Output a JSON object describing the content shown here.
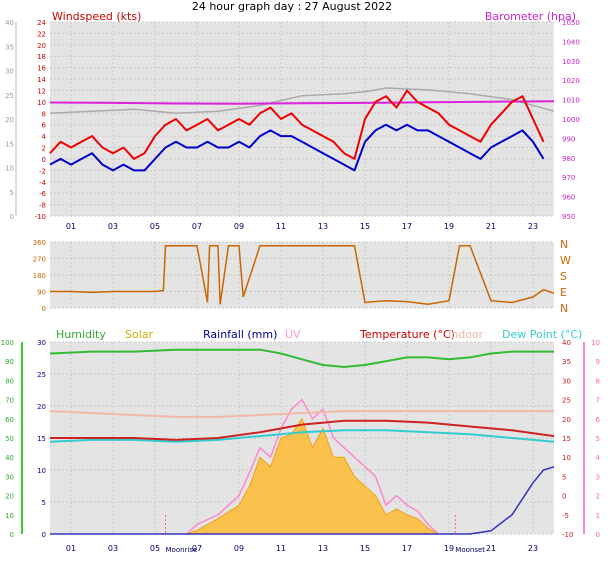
{
  "colors": {
    "panel_bg": "#e4e4e4",
    "grid": "#c8c8c8",
    "windspeed": "#ee0000",
    "wind_avg": "#0000cc",
    "barometer": "#dd22dd",
    "baro_alt": "#aaaaaa",
    "direction": "#cc6600",
    "humidity": "#33bb33",
    "solar": "#ffbb33",
    "rainfall": "#3333bb",
    "uv": "#ff88cc",
    "temperature": "#cc2222",
    "indoor": "#f0b8a8",
    "dewpoint": "#33cccc"
  },
  "chart_data": [
    {
      "type": "line",
      "title": "24 hour graph day : 27 August 2022",
      "x_tick_labels": [
        "01",
        "03",
        "05",
        "07",
        "09",
        "11",
        "13",
        "15",
        "17",
        "19",
        "21",
        "23"
      ],
      "left_axis": {
        "label": "Windspeed (kts)",
        "range": [
          -10,
          24
        ],
        "ticks": [
          "24",
          "22",
          "20",
          "18",
          "16",
          "14",
          "12",
          "10",
          "8",
          "6",
          "4",
          "2",
          "0",
          "-2",
          "-4",
          "-6",
          "-8",
          "-10"
        ]
      },
      "outer_axis": {
        "range": [
          0,
          40
        ],
        "ticks": [
          "40",
          "35",
          "30",
          "25",
          "20",
          "15",
          "10",
          "5",
          "0"
        ]
      },
      "right_axis": {
        "label": "Barometer (hpa)",
        "range": [
          950,
          1050
        ],
        "ticks": [
          "1050",
          "1040",
          "1030",
          "1020",
          "1010",
          "1000",
          "990",
          "980",
          "970",
          "960",
          "950"
        ]
      },
      "series": [
        {
          "name": "Windspeed (kts)",
          "x": [
            0,
            0.5,
            1,
            1.5,
            2,
            2.5,
            3,
            3.5,
            4,
            4.5,
            5,
            5.5,
            6,
            6.5,
            7,
            7.5,
            8,
            8.5,
            9,
            9.5,
            10,
            10.5,
            11,
            11.5,
            12,
            12.5,
            13,
            13.5,
            14,
            14.5,
            15,
            15.5,
            16,
            16.5,
            17,
            17.5,
            18,
            18.5,
            19,
            19.5,
            20,
            20.5,
            21,
            21.5,
            22,
            22.5,
            23,
            23.5
          ],
          "y": [
            1,
            3,
            2,
            3,
            4,
            2,
            1,
            2,
            0,
            1,
            4,
            6,
            7,
            5,
            6,
            7,
            5,
            6,
            7,
            6,
            8,
            9,
            7,
            8,
            6,
            5,
            4,
            3,
            1,
            0,
            7,
            10,
            11,
            9,
            12,
            10,
            9,
            8,
            6,
            5,
            4,
            3,
            6,
            8,
            10,
            11,
            7,
            3
          ]
        },
        {
          "name": "Wind average",
          "x": [
            0,
            0.5,
            1,
            1.5,
            2,
            2.5,
            3,
            3.5,
            4,
            4.5,
            5,
            5.5,
            6,
            6.5,
            7,
            7.5,
            8,
            8.5,
            9,
            9.5,
            10,
            10.5,
            11,
            11.5,
            12,
            12.5,
            13,
            13.5,
            14,
            14.5,
            15,
            15.5,
            16,
            16.5,
            17,
            17.5,
            18,
            18.5,
            19,
            19.5,
            20,
            20.5,
            21,
            21.5,
            22,
            22.5,
            23,
            23.5
          ],
          "y": [
            -1,
            0,
            -1,
            0,
            1,
            -1,
            -2,
            -1,
            -2,
            -2,
            0,
            2,
            3,
            2,
            2,
            3,
            2,
            2,
            3,
            2,
            4,
            5,
            4,
            4,
            3,
            2,
            1,
            0,
            -1,
            -2,
            3,
            5,
            6,
            5,
            6,
            5,
            5,
            4,
            3,
            2,
            1,
            0,
            2,
            3,
            4,
            5,
            3,
            0
          ]
        },
        {
          "name": "Barometer (hpa)",
          "x": [
            0,
            3,
            6,
            9,
            12,
            15,
            18,
            21,
            24
          ],
          "y": [
            1008.5,
            1008.3,
            1008.0,
            1007.9,
            1008.1,
            1008.3,
            1008.6,
            1008.9,
            1009.2
          ]
        },
        {
          "name": "Barometer alt",
          "x": [
            0,
            2,
            4,
            6,
            8,
            10,
            12,
            14,
            15,
            16,
            18,
            20,
            22,
            24
          ],
          "y": [
            1003,
            1004,
            1005,
            1003,
            1004,
            1007,
            1012,
            1013,
            1014,
            1016,
            1015,
            1013,
            1010,
            1004
          ]
        }
      ]
    },
    {
      "type": "line",
      "right_labels": [
        "N",
        "W",
        "S",
        "E",
        "N"
      ],
      "left_axis": {
        "range": [
          0,
          360
        ],
        "ticks": [
          "360",
          "270",
          "180",
          "90",
          "0"
        ]
      },
      "series": [
        {
          "name": "Wind direction",
          "x": [
            0,
            1,
            2,
            3,
            4,
            4.5,
            5,
            5.4,
            5.5,
            7,
            7.5,
            7.6,
            8,
            8.1,
            8.5,
            9,
            9.2,
            10,
            10.5,
            11,
            12,
            12.2,
            13,
            13.5,
            14,
            14.5,
            15,
            16,
            17,
            18,
            19,
            19.5,
            20,
            21,
            22,
            23,
            23.5,
            24
          ],
          "y": [
            90,
            90,
            85,
            90,
            90,
            90,
            90,
            95,
            340,
            340,
            30,
            340,
            340,
            20,
            340,
            340,
            60,
            340,
            340,
            340,
            340,
            340,
            340,
            340,
            340,
            340,
            30,
            40,
            35,
            20,
            40,
            340,
            340,
            40,
            30,
            60,
            100,
            80
          ]
        }
      ]
    },
    {
      "type": "line",
      "x_tick_labels": [
        "01",
        "03",
        "05",
        "07",
        "09",
        "11",
        "13",
        "15",
        "17",
        "19",
        "21",
        "23"
      ],
      "legend": [
        "Humidity",
        "Solar",
        "Rainfall (mm)",
        "UV",
        "Temperature (°C)",
        "Indoor",
        "Dew Point (°C)"
      ],
      "annotations": [
        "Moonrise",
        "Moonset"
      ],
      "humidity_axis": {
        "range": [
          0,
          100
        ],
        "ticks": [
          "100",
          "90",
          "80",
          "70",
          "60",
          "50",
          "40",
          "30",
          "20",
          "10",
          "0"
        ]
      },
      "rain_axis": {
        "range": [
          0,
          30
        ],
        "ticks": [
          "30",
          "25",
          "20",
          "15",
          "10",
          "5",
          "0"
        ]
      },
      "temp_axis": {
        "range": [
          -10,
          40
        ],
        "ticks": [
          "40",
          "35",
          "30",
          "25",
          "20",
          "15",
          "10",
          "5",
          "0",
          "-5",
          "-10"
        ]
      },
      "uv_axis": {
        "range": [
          0,
          10
        ],
        "ticks": [
          "10",
          "9",
          "8",
          "7",
          "6",
          "5",
          "4",
          "3",
          "2",
          "1",
          "0"
        ]
      },
      "series": [
        {
          "name": "Humidity",
          "x": [
            0,
            2,
            4,
            6,
            8,
            10,
            11,
            12,
            13,
            14,
            15,
            16,
            17,
            18,
            19,
            20,
            21,
            22,
            23,
            24
          ],
          "y": [
            94,
            95,
            95,
            96,
            96,
            96,
            94,
            91,
            88,
            87,
            88,
            90,
            92,
            92,
            91,
            92,
            94,
            95,
            95,
            95
          ]
        },
        {
          "name": "Temperature (°C)",
          "x": [
            0,
            2,
            4,
            6,
            8,
            10,
            12,
            14,
            16,
            18,
            20,
            22,
            24
          ],
          "y": [
            15,
            15,
            15,
            14.5,
            15,
            16.5,
            18.5,
            19.5,
            19.5,
            19,
            18,
            17,
            15.5
          ]
        },
        {
          "name": "Dew Point (°C)",
          "x": [
            0,
            2,
            4,
            6,
            8,
            10,
            12,
            14,
            16,
            18,
            20,
            22,
            24
          ],
          "y": [
            14,
            14.5,
            14.5,
            14,
            14.5,
            15.5,
            16.5,
            17,
            17,
            16.5,
            16,
            15,
            14
          ]
        },
        {
          "name": "Indoor",
          "x": [
            0,
            2,
            4,
            6,
            8,
            10,
            12,
            14,
            16,
            18,
            20,
            22,
            24
          ],
          "y": [
            22,
            21.5,
            21,
            20.5,
            20.5,
            21,
            21.5,
            22,
            22,
            22,
            22,
            22,
            22
          ]
        },
        {
          "name": "Rainfall (mm)",
          "x": [
            0,
            20,
            21,
            22,
            22.5,
            23,
            23.5,
            24
          ],
          "y": [
            0,
            0,
            0.5,
            3,
            5.5,
            8,
            10,
            10.5
          ]
        },
        {
          "name": "UV",
          "x": [
            6.5,
            7,
            8,
            9,
            9.5,
            10,
            10.5,
            11,
            11.5,
            12,
            12.5,
            13,
            13.5,
            14,
            14.5,
            15,
            15.5,
            16,
            16.5,
            17,
            17.5,
            18,
            18.5
          ],
          "y": [
            0,
            0.5,
            1,
            2,
            3.2,
            4.5,
            4,
            5.5,
            6.5,
            7,
            6,
            6.5,
            5,
            4.5,
            4,
            3.5,
            3,
            1.5,
            2,
            1.5,
            1.2,
            0.5,
            0
          ]
        },
        {
          "name": "Solar",
          "x": [
            6.5,
            7,
            8,
            9,
            9.5,
            10,
            10.5,
            11,
            11.5,
            12,
            12.5,
            13,
            13.5,
            14,
            14.5,
            15,
            15.5,
            16,
            16.5,
            17,
            17.5,
            18,
            18.5
          ],
          "y": [
            0,
            0.2,
            0.8,
            1.5,
            2.5,
            4,
            3.5,
            5,
            5.2,
            6,
            4.5,
            5.5,
            4,
            4,
            3,
            2.5,
            2,
            1,
            1.3,
            1,
            0.8,
            0.3,
            0
          ]
        }
      ]
    }
  ]
}
